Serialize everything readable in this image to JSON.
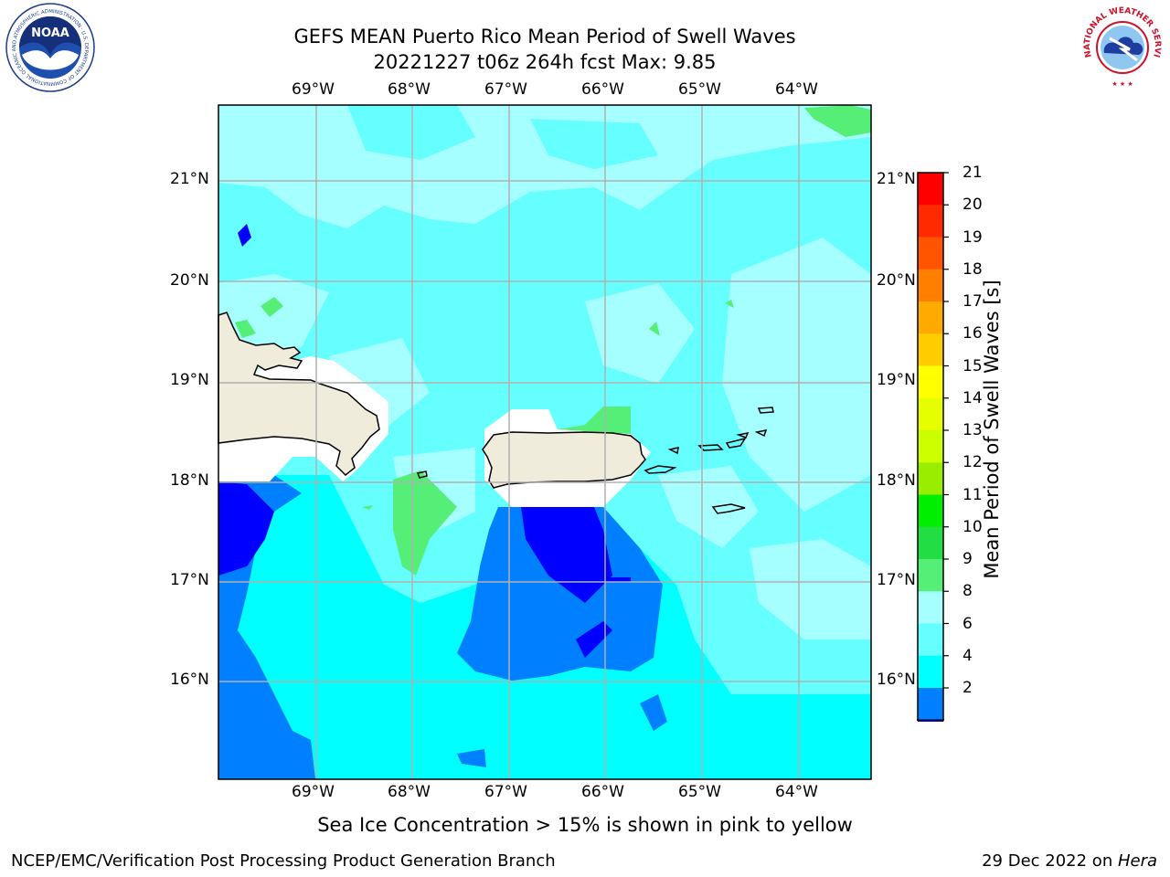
{
  "title": {
    "line1": "GEFS MEAN Puerto Rico Mean Period of Swell Waves",
    "line2": "20221227 t06z 264h fcst   Max: 9.85"
  },
  "map": {
    "lon_labels": [
      "69°W",
      "68°W",
      "67°W",
      "66°W",
      "65°W",
      "64°W"
    ],
    "lat_labels": [
      "21°N",
      "20°N",
      "19°N",
      "18°N",
      "17°N",
      "16°N"
    ],
    "colors": {
      "land": "#efecdc",
      "masked": "#ffffff",
      "c2": "#0000ff",
      "c4": "#0080ff",
      "c6": "#00ffff",
      "c8": "#66ffff",
      "c9": "#a6ffff",
      "c10": "#55ee77",
      "grid": "#b0b0b0"
    }
  },
  "colorbar": {
    "label": "Mean Period of Swell Waves [s]",
    "ticks": [
      "21",
      "20",
      "19",
      "18",
      "17",
      "16",
      "15",
      "14",
      "13",
      "12",
      "11",
      "10",
      "9",
      "8",
      "6",
      "4",
      "2"
    ],
    "colors": [
      "#ff0000",
      "#ff2a00",
      "#ff5500",
      "#ff8000",
      "#ffaa00",
      "#ffcc00",
      "#ffff00",
      "#e6ff00",
      "#ccff00",
      "#99ee00",
      "#00ee00",
      "#22dd44",
      "#55ee77",
      "#a6ffff",
      "#66ffff",
      "#00ffff",
      "#0080ff"
    ],
    "extend_color": "#0000ff"
  },
  "note": "Sea Ice Concentration > 15% is shown in pink to yellow",
  "footer": {
    "left": "NCEP/EMC/Verification Post Processing Product Generation Branch",
    "date": "29 Dec 2022 on ",
    "machine": "Hera"
  },
  "logos": {
    "noaa": {
      "text": "NOAA",
      "ring": "NATIONAL OCEANIC AND ATMOSPHERIC ADMINISTRATION · U.S. DEPARTMENT OF COMMERCE ·"
    },
    "nws": {
      "ring": "NATIONAL WEATHER SERVICE"
    }
  }
}
